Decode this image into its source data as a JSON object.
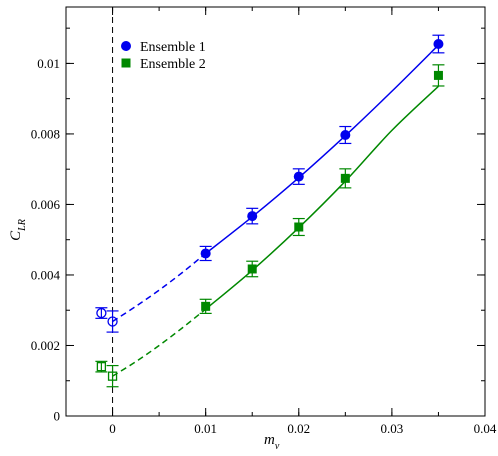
{
  "chart_data": {
    "type": "scatter",
    "xlabel": "m",
    "xlabel_sub": "v",
    "ylabel": "C",
    "ylabel_sub": "LR",
    "xlim": [
      -0.005,
      0.04
    ],
    "ylim": [
      0,
      0.0116
    ],
    "xticks": [
      0,
      0.01,
      0.02,
      0.03,
      0.04
    ],
    "xtick_labels": [
      "0",
      "0.01",
      "0.02",
      "0.03",
      "0.04"
    ],
    "yticks": [
      0,
      0.002,
      0.004,
      0.006,
      0.008,
      0.01
    ],
    "ytick_labels": [
      "0",
      "0.002",
      "0.004",
      "0.006",
      "0.008",
      "0.01"
    ],
    "grid": false,
    "legend_position": "top-left",
    "vertical_reference_line_x": 0,
    "series": [
      {
        "name": "Ensemble 1",
        "color": "#0000ee",
        "marker": "circle",
        "points": [
          {
            "x": 0.01,
            "y": 0.00461,
            "err": 0.0002
          },
          {
            "x": 0.015,
            "y": 0.00567,
            "err": 0.00022
          },
          {
            "x": 0.02,
            "y": 0.00679,
            "err": 0.00022
          },
          {
            "x": 0.025,
            "y": 0.00797,
            "err": 0.00024
          },
          {
            "x": 0.035,
            "y": 0.01055,
            "err": 0.00025
          }
        ],
        "extrapolated_points": [
          {
            "x": -0.0012,
            "y": 0.00292,
            "err": 0.00015
          },
          {
            "x": 0.0,
            "y": 0.00268,
            "err": 0.0003
          }
        ],
        "fit_solid": [
          [
            0.01,
            0.00461
          ],
          [
            0.015,
            0.00565
          ],
          [
            0.02,
            0.00676
          ],
          [
            0.025,
            0.00795
          ],
          [
            0.03,
            0.00921
          ],
          [
            0.035,
            0.01052
          ]
        ],
        "fit_dashed": [
          [
            0.0,
            0.00268
          ],
          [
            0.0025,
            0.00311
          ],
          [
            0.005,
            0.00357
          ],
          [
            0.0075,
            0.00407
          ],
          [
            0.01,
            0.00461
          ]
        ]
      },
      {
        "name": "Ensemble 2",
        "color": "#008800",
        "marker": "square",
        "points": [
          {
            "x": 0.01,
            "y": 0.00311,
            "err": 0.0002
          },
          {
            "x": 0.015,
            "y": 0.00417,
            "err": 0.00022
          },
          {
            "x": 0.02,
            "y": 0.00536,
            "err": 0.00024
          },
          {
            "x": 0.025,
            "y": 0.00674,
            "err": 0.00027
          },
          {
            "x": 0.035,
            "y": 0.00966,
            "err": 0.0003
          }
        ],
        "extrapolated_points": [
          {
            "x": -0.0012,
            "y": 0.0014,
            "err": 0.00015
          },
          {
            "x": 0.0,
            "y": 0.00113,
            "err": 0.0003
          }
        ],
        "fit_solid": [
          [
            0.01,
            0.00303
          ],
          [
            0.015,
            0.00413
          ],
          [
            0.02,
            0.00534
          ],
          [
            0.025,
            0.00666
          ],
          [
            0.03,
            0.0081
          ],
          [
            0.035,
            0.00935
          ]
        ],
        "fit_dashed": [
          [
            0.0,
            0.00113
          ],
          [
            0.0025,
            0.00154
          ],
          [
            0.005,
            0.002
          ],
          [
            0.0075,
            0.0025
          ],
          [
            0.01,
            0.00303
          ]
        ]
      }
    ]
  }
}
